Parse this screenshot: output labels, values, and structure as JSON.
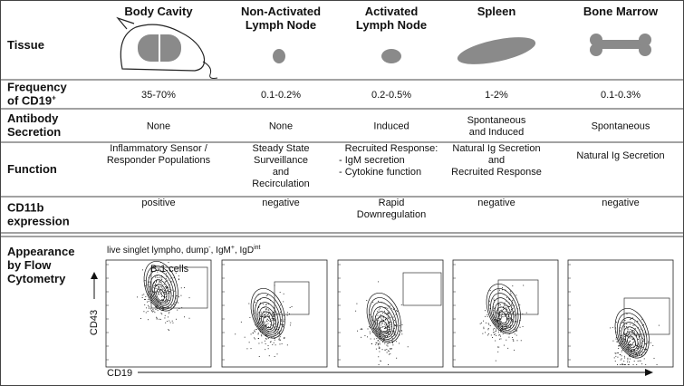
{
  "header": {
    "row_label": "Tissue",
    "columns": [
      [
        "Body Cavity"
      ],
      [
        "Non-Activated",
        "Lymph Node"
      ],
      [
        "Activated",
        "Lymph Node"
      ],
      [
        "Spleen"
      ],
      [
        "Bone Marrow"
      ]
    ]
  },
  "rows": [
    {
      "label": [
        "Frequency",
        "of CD19"
      ],
      "label_sup": "+",
      "cells": [
        [
          "35-70%"
        ],
        [
          "0.1-0.2%"
        ],
        [
          "0.2-0.5%"
        ],
        [
          "1-2%"
        ],
        [
          "0.1-0.3%"
        ]
      ]
    },
    {
      "label": [
        "Antibody",
        "Secretion"
      ],
      "cells": [
        [
          "None"
        ],
        [
          "None"
        ],
        [
          "Induced"
        ],
        [
          "Spontaneous",
          "and Induced"
        ],
        [
          "Spontaneous"
        ]
      ]
    },
    {
      "label": [
        "Function"
      ],
      "cells": [
        [
          "Inflammatory Sensor /",
          "Responder Populations"
        ],
        [
          "Steady State",
          "Surveillance",
          "and",
          "Recirculation"
        ],
        [
          "Recruited Response:",
          "- IgM secretion",
          "- Cytokine function"
        ],
        [
          "Natural Ig Secretion",
          "and",
          "Recruited Response"
        ],
        [
          "Natural Ig Secretion"
        ]
      ]
    },
    {
      "label": [
        "CD11b",
        "expression"
      ],
      "cells": [
        [
          "positive"
        ],
        [
          "negative"
        ],
        [
          "Rapid",
          "Downregulation"
        ],
        [
          "negative"
        ],
        [
          "negative"
        ]
      ]
    }
  ],
  "flow": {
    "label": [
      "Appearance",
      "by Flow",
      "Cytometry"
    ],
    "gate_label": [
      "live singlet lympho, dump",
      "-",
      ", IgM",
      "+",
      ", IgD",
      "int"
    ],
    "population": "B-1 cells",
    "y_axis": "CD43",
    "x_axis": "CD19"
  }
}
